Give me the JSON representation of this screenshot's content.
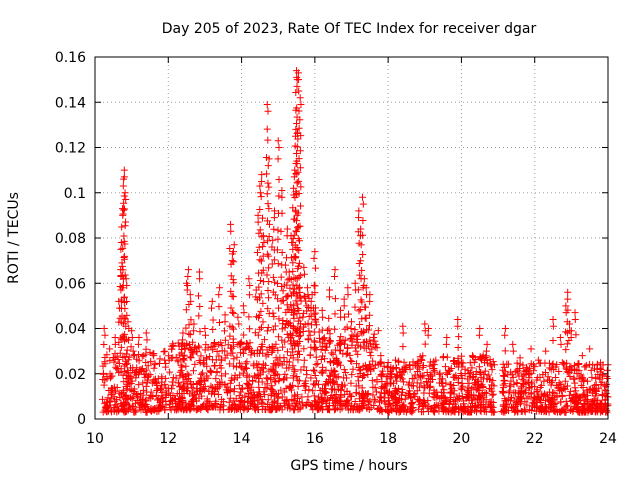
{
  "chart_data": {
    "type": "scatter",
    "title": "Day 205 of 2023, Rate Of TEC Index for receiver dgar",
    "xlabel": "GPS time / hours",
    "ylabel": "ROTI / TECUs",
    "xlim": [
      10,
      24
    ],
    "ylim": [
      0,
      0.16
    ],
    "xticks": [
      "10",
      "12",
      "14",
      "16",
      "18",
      "20",
      "22",
      "24"
    ],
    "yticks": [
      "0",
      "0.02",
      "0.04",
      "0.06",
      "0.08",
      "0.1",
      "0.12",
      "0.14",
      "0.16"
    ],
    "grid": true,
    "marker": "+",
    "color": "#ff0000",
    "series": [
      {
        "x": [
          10.25,
          10.4,
          10.55,
          10.65,
          10.7,
          10.72,
          10.75,
          10.78,
          10.8,
          10.82,
          10.85,
          10.9,
          11.0,
          11.2,
          11.4,
          11.6,
          11.9,
          12.1,
          12.4,
          12.5,
          12.55,
          12.6,
          12.7,
          12.85,
          13.0,
          13.2,
          13.4,
          13.55,
          13.7,
          13.75,
          13.8,
          13.9,
          14.05,
          14.2,
          14.4,
          14.45,
          14.5,
          14.55,
          14.6,
          14.7,
          14.75,
          14.85,
          14.9,
          15.0,
          15.1,
          15.2,
          15.25,
          15.3,
          15.35,
          15.4,
          15.42,
          15.45,
          15.48,
          15.5,
          15.52,
          15.55,
          15.6,
          15.7,
          15.8,
          15.9,
          16.0,
          16.2,
          16.4,
          16.55,
          16.7,
          16.8,
          16.9,
          17.0,
          17.1,
          17.2,
          17.25,
          17.3,
          17.35,
          17.4,
          17.5,
          17.6,
          17.8,
          18.0,
          18.2,
          18.4,
          18.6,
          18.8,
          19.0,
          19.1,
          19.3,
          19.6,
          19.9,
          20.1,
          20.3,
          20.5,
          20.7,
          20.9,
          21.2,
          21.4,
          21.6,
          21.9,
          22.1,
          22.3,
          22.5,
          22.7,
          22.85,
          22.9,
          22.95,
          23.0,
          23.1,
          23.3,
          23.5,
          23.7,
          23.9,
          24.0
        ],
        "y": [
          0.04,
          0.031,
          0.036,
          0.052,
          0.066,
          0.078,
          0.093,
          0.106,
          0.11,
          0.1,
          0.062,
          0.043,
          0.039,
          0.036,
          0.038,
          0.028,
          0.026,
          0.032,
          0.038,
          0.06,
          0.066,
          0.055,
          0.042,
          0.065,
          0.04,
          0.052,
          0.058,
          0.046,
          0.086,
          0.073,
          0.077,
          0.045,
          0.05,
          0.062,
          0.057,
          0.09,
          0.103,
          0.108,
          0.081,
          0.139,
          0.115,
          0.079,
          0.092,
          0.123,
          0.101,
          0.068,
          0.084,
          0.065,
          0.081,
          0.078,
          0.102,
          0.11,
          0.128,
          0.154,
          0.15,
          0.153,
          0.142,
          0.067,
          0.058,
          0.052,
          0.074,
          0.048,
          0.057,
          0.066,
          0.048,
          0.053,
          0.058,
          0.043,
          0.06,
          0.092,
          0.084,
          0.098,
          0.062,
          0.058,
          0.055,
          0.036,
          0.028,
          0.025,
          0.026,
          0.041,
          0.022,
          0.021,
          0.042,
          0.04,
          0.026,
          0.036,
          0.044,
          0.022,
          0.028,
          0.04,
          0.033,
          0.024,
          0.04,
          0.033,
          0.027,
          0.031,
          0.026,
          0.03,
          0.044,
          0.036,
          0.05,
          0.056,
          0.042,
          0.039,
          0.047,
          0.028,
          0.031,
          0.022,
          0.015,
          0.024
        ],
        "dense_band": [
          {
            "x_range": [
              10.2,
              11.95
            ],
            "y_range": [
              0.003,
              0.03
            ]
          },
          {
            "x_range": [
              12.0,
              15.1
            ],
            "y_range": [
              0.004,
              0.034
            ]
          },
          {
            "x_range": [
              15.1,
              16.05
            ],
            "y_range": [
              0.004,
              0.06
            ]
          },
          {
            "x_range": [
              16.05,
              17.75
            ],
            "y_range": [
              0.004,
              0.04
            ]
          },
          {
            "x_range": [
              17.75,
              18.85
            ],
            "y_range": [
              0.003,
              0.026
            ]
          },
          {
            "x_range": [
              18.85,
              20.9
            ],
            "y_range": [
              0.003,
              0.028
            ]
          },
          {
            "x_range": [
              21.1,
              24.0
            ],
            "y_range": [
              0.003,
              0.025
            ]
          }
        ]
      }
    ]
  }
}
